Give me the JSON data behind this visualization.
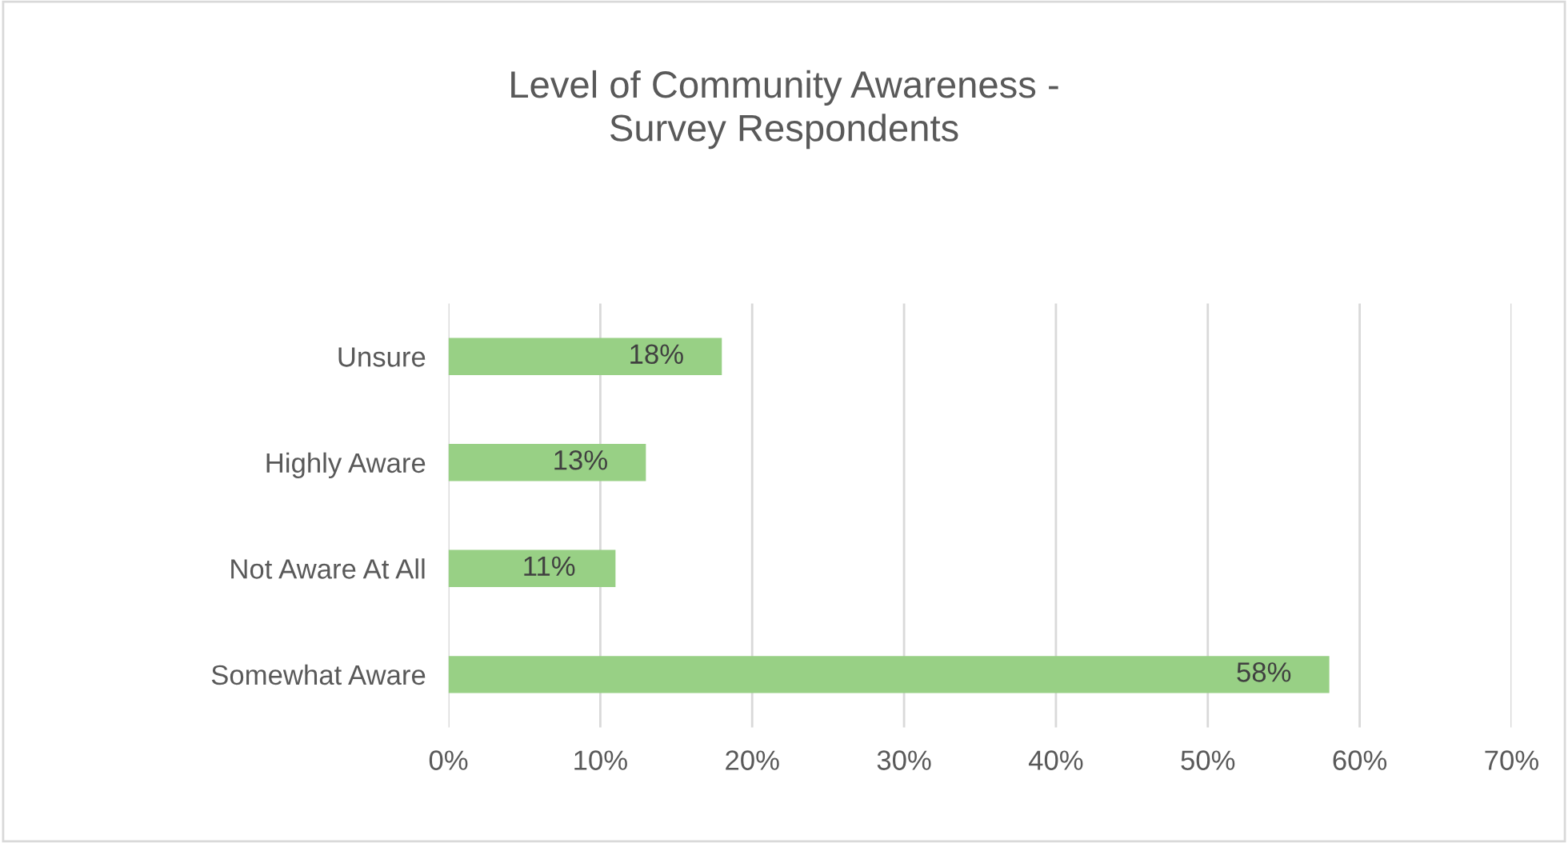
{
  "chart_data": {
    "type": "bar",
    "orientation": "horizontal",
    "title": "Level of Community Awareness -\nSurvey Respondents",
    "categories": [
      "Unsure",
      "Highly Aware",
      "Not Aware At All",
      "Somewhat Aware"
    ],
    "values": [
      18,
      13,
      11,
      58
    ],
    "value_labels": [
      "18%",
      "13%",
      "11%",
      "58%"
    ],
    "color": "#98d085",
    "xlim": [
      0,
      70
    ],
    "xticks": [
      {
        "value": 0,
        "label": "0%"
      },
      {
        "value": 10,
        "label": "10%"
      },
      {
        "value": 20,
        "label": "20%"
      },
      {
        "value": 30,
        "label": "30%"
      },
      {
        "value": 40,
        "label": "40%"
      },
      {
        "value": 50,
        "label": "50%"
      },
      {
        "value": 60,
        "label": "60%"
      },
      {
        "value": 70,
        "label": "70%"
      }
    ],
    "grid": "x"
  }
}
